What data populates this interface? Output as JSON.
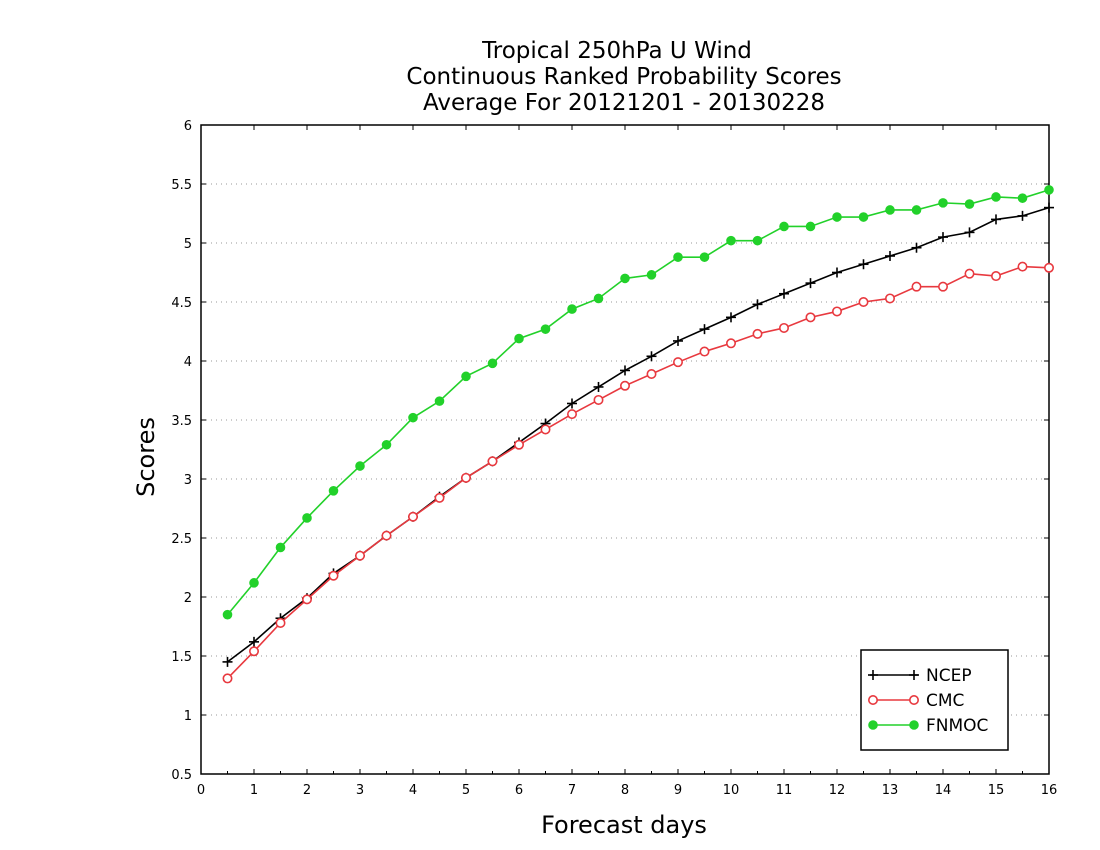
{
  "chart_data": {
    "type": "line",
    "title_lines": [
      "Tropical 250hPa U Wind",
      "Continuous Ranked Probability Scores",
      "Average For 20121201 - 20130228"
    ],
    "xlabel": "Forecast days",
    "ylabel": "Scores",
    "xlim": [
      0,
      16
    ],
    "ylim": [
      0.5,
      6
    ],
    "xticks": [
      0,
      1,
      2,
      3,
      4,
      5,
      6,
      7,
      8,
      9,
      10,
      11,
      12,
      13,
      14,
      15,
      16
    ],
    "yticks": [
      0.5,
      1,
      1.5,
      2,
      2.5,
      3,
      3.5,
      4,
      4.5,
      5,
      5.5,
      6
    ],
    "ytick_labels": [
      "0.5",
      "1",
      "1.5",
      "2",
      "2.5",
      "3",
      "3.5",
      "4",
      "4.5",
      "5",
      "5.5",
      "6"
    ],
    "grid": "horizontal dotted",
    "legend_position": "bottom-right",
    "x": [
      0.5,
      1,
      1.5,
      2,
      2.5,
      3,
      3.5,
      4,
      4.5,
      5,
      5.5,
      6,
      6.5,
      7,
      7.5,
      8,
      8.5,
      9,
      9.5,
      10,
      10.5,
      11,
      11.5,
      12,
      12.5,
      13,
      13.5,
      14,
      14.5,
      15,
      15.5,
      16
    ],
    "series": [
      {
        "name": "NCEP",
        "color": "#000000",
        "marker": "plus",
        "values": [
          1.45,
          1.62,
          1.82,
          1.99,
          2.2,
          2.35,
          2.52,
          2.68,
          2.85,
          3.01,
          3.15,
          3.31,
          3.47,
          3.64,
          3.78,
          3.92,
          4.04,
          4.17,
          4.27,
          4.37,
          4.48,
          4.57,
          4.66,
          4.75,
          4.82,
          4.89,
          4.96,
          5.05,
          5.09,
          5.2,
          5.23,
          5.3
        ]
      },
      {
        "name": "CMC",
        "color": "#e8393f",
        "marker": "open-circle",
        "values": [
          1.31,
          1.54,
          1.78,
          1.98,
          2.18,
          2.35,
          2.52,
          2.68,
          2.84,
          3.01,
          3.15,
          3.29,
          3.42,
          3.55,
          3.67,
          3.79,
          3.89,
          3.99,
          4.08,
          4.15,
          4.23,
          4.28,
          4.37,
          4.42,
          4.5,
          4.53,
          4.63,
          4.63,
          4.74,
          4.72,
          4.8,
          4.79
        ]
      },
      {
        "name": "FNMOC",
        "color": "#22d12a",
        "marker": "filled-circle",
        "values": [
          1.85,
          2.12,
          2.42,
          2.67,
          2.9,
          3.11,
          3.29,
          3.52,
          3.66,
          3.87,
          3.98,
          4.19,
          4.27,
          4.44,
          4.53,
          4.7,
          4.73,
          4.88,
          4.88,
          5.02,
          5.02,
          5.14,
          5.14,
          5.22,
          5.22,
          5.28,
          5.28,
          5.34,
          5.33,
          5.39,
          5.38,
          5.45
        ]
      }
    ]
  }
}
